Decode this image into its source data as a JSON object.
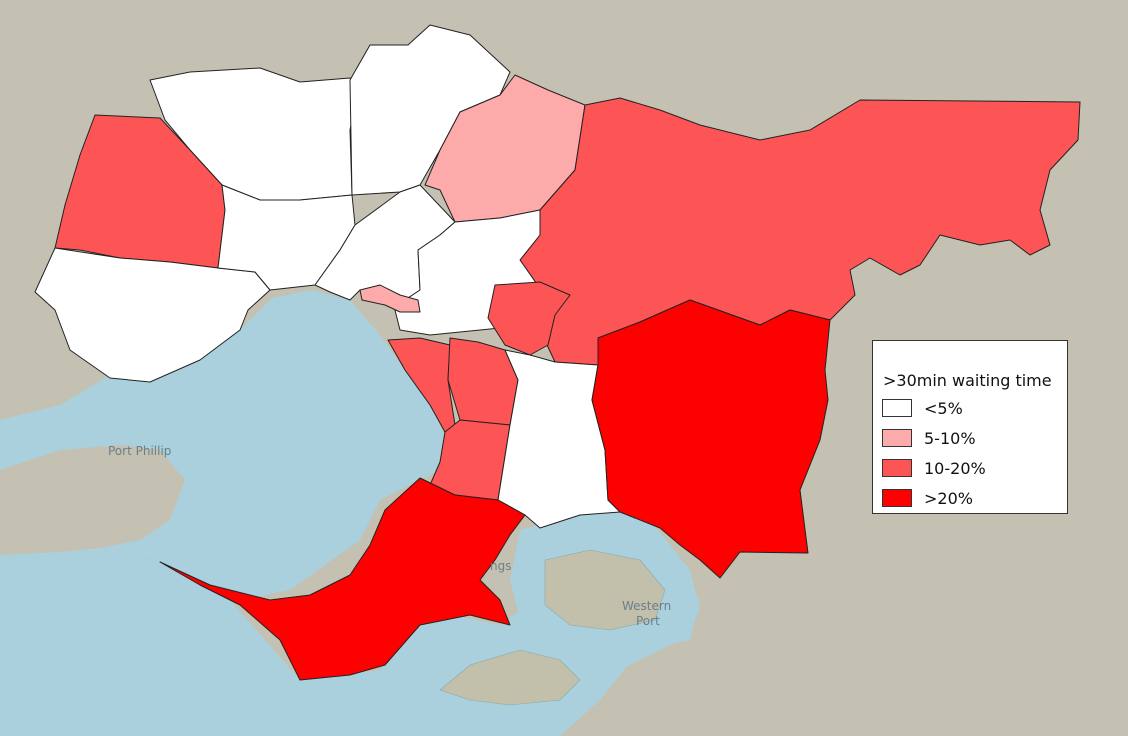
{
  "colors": {
    "land": "#c4c1b2",
    "water": "#a9d0dc",
    "island": "#c2bfaa",
    "cat_lt5": "#ffffff",
    "cat_5_10": "#fdaaaa",
    "cat_10_20": "#fd5555",
    "cat_gt20": "#fd0000"
  },
  "basemap_labels": {
    "port_phillip_partial": "Port Phillip",
    "western_port_line1": "Western",
    "western_port_line2": "Port",
    "hastings_partial": "ngs"
  },
  "legend": {
    "title": ">30min waiting time",
    "items": [
      {
        "label": "<5%",
        "category": "cat_lt5"
      },
      {
        "label": "5-10%",
        "category": "cat_5_10"
      },
      {
        "label": "10-20%",
        "category": "cat_10_20"
      },
      {
        "label": ">20%",
        "category": "cat_gt20"
      }
    ]
  },
  "regions": [
    {
      "name": "north-west",
      "category": "cat_lt5"
    },
    {
      "name": "north",
      "category": "cat_lt5"
    },
    {
      "name": "north-east-top",
      "category": "cat_lt5"
    },
    {
      "name": "nillumbik",
      "category": "cat_5_10"
    },
    {
      "name": "yarra-ranges",
      "category": "cat_10_20"
    },
    {
      "name": "melton",
      "category": "cat_10_20"
    },
    {
      "name": "wyndham",
      "category": "cat_lt5"
    },
    {
      "name": "west-middle",
      "category": "cat_lt5"
    },
    {
      "name": "inner-city",
      "category": "cat_lt5"
    },
    {
      "name": "inner-east",
      "category": "cat_lt5"
    },
    {
      "name": "boroondara-small",
      "category": "cat_5_10"
    },
    {
      "name": "maroondah",
      "category": "cat_10_20"
    },
    {
      "name": "bayside-southeast",
      "category": "cat_10_20"
    },
    {
      "name": "kingston",
      "category": "cat_10_20"
    },
    {
      "name": "frankston",
      "category": "cat_10_20"
    },
    {
      "name": "casey",
      "category": "cat_lt5"
    },
    {
      "name": "cardinia",
      "category": "cat_gt20"
    },
    {
      "name": "mornington-peninsula",
      "category": "cat_gt20"
    }
  ]
}
